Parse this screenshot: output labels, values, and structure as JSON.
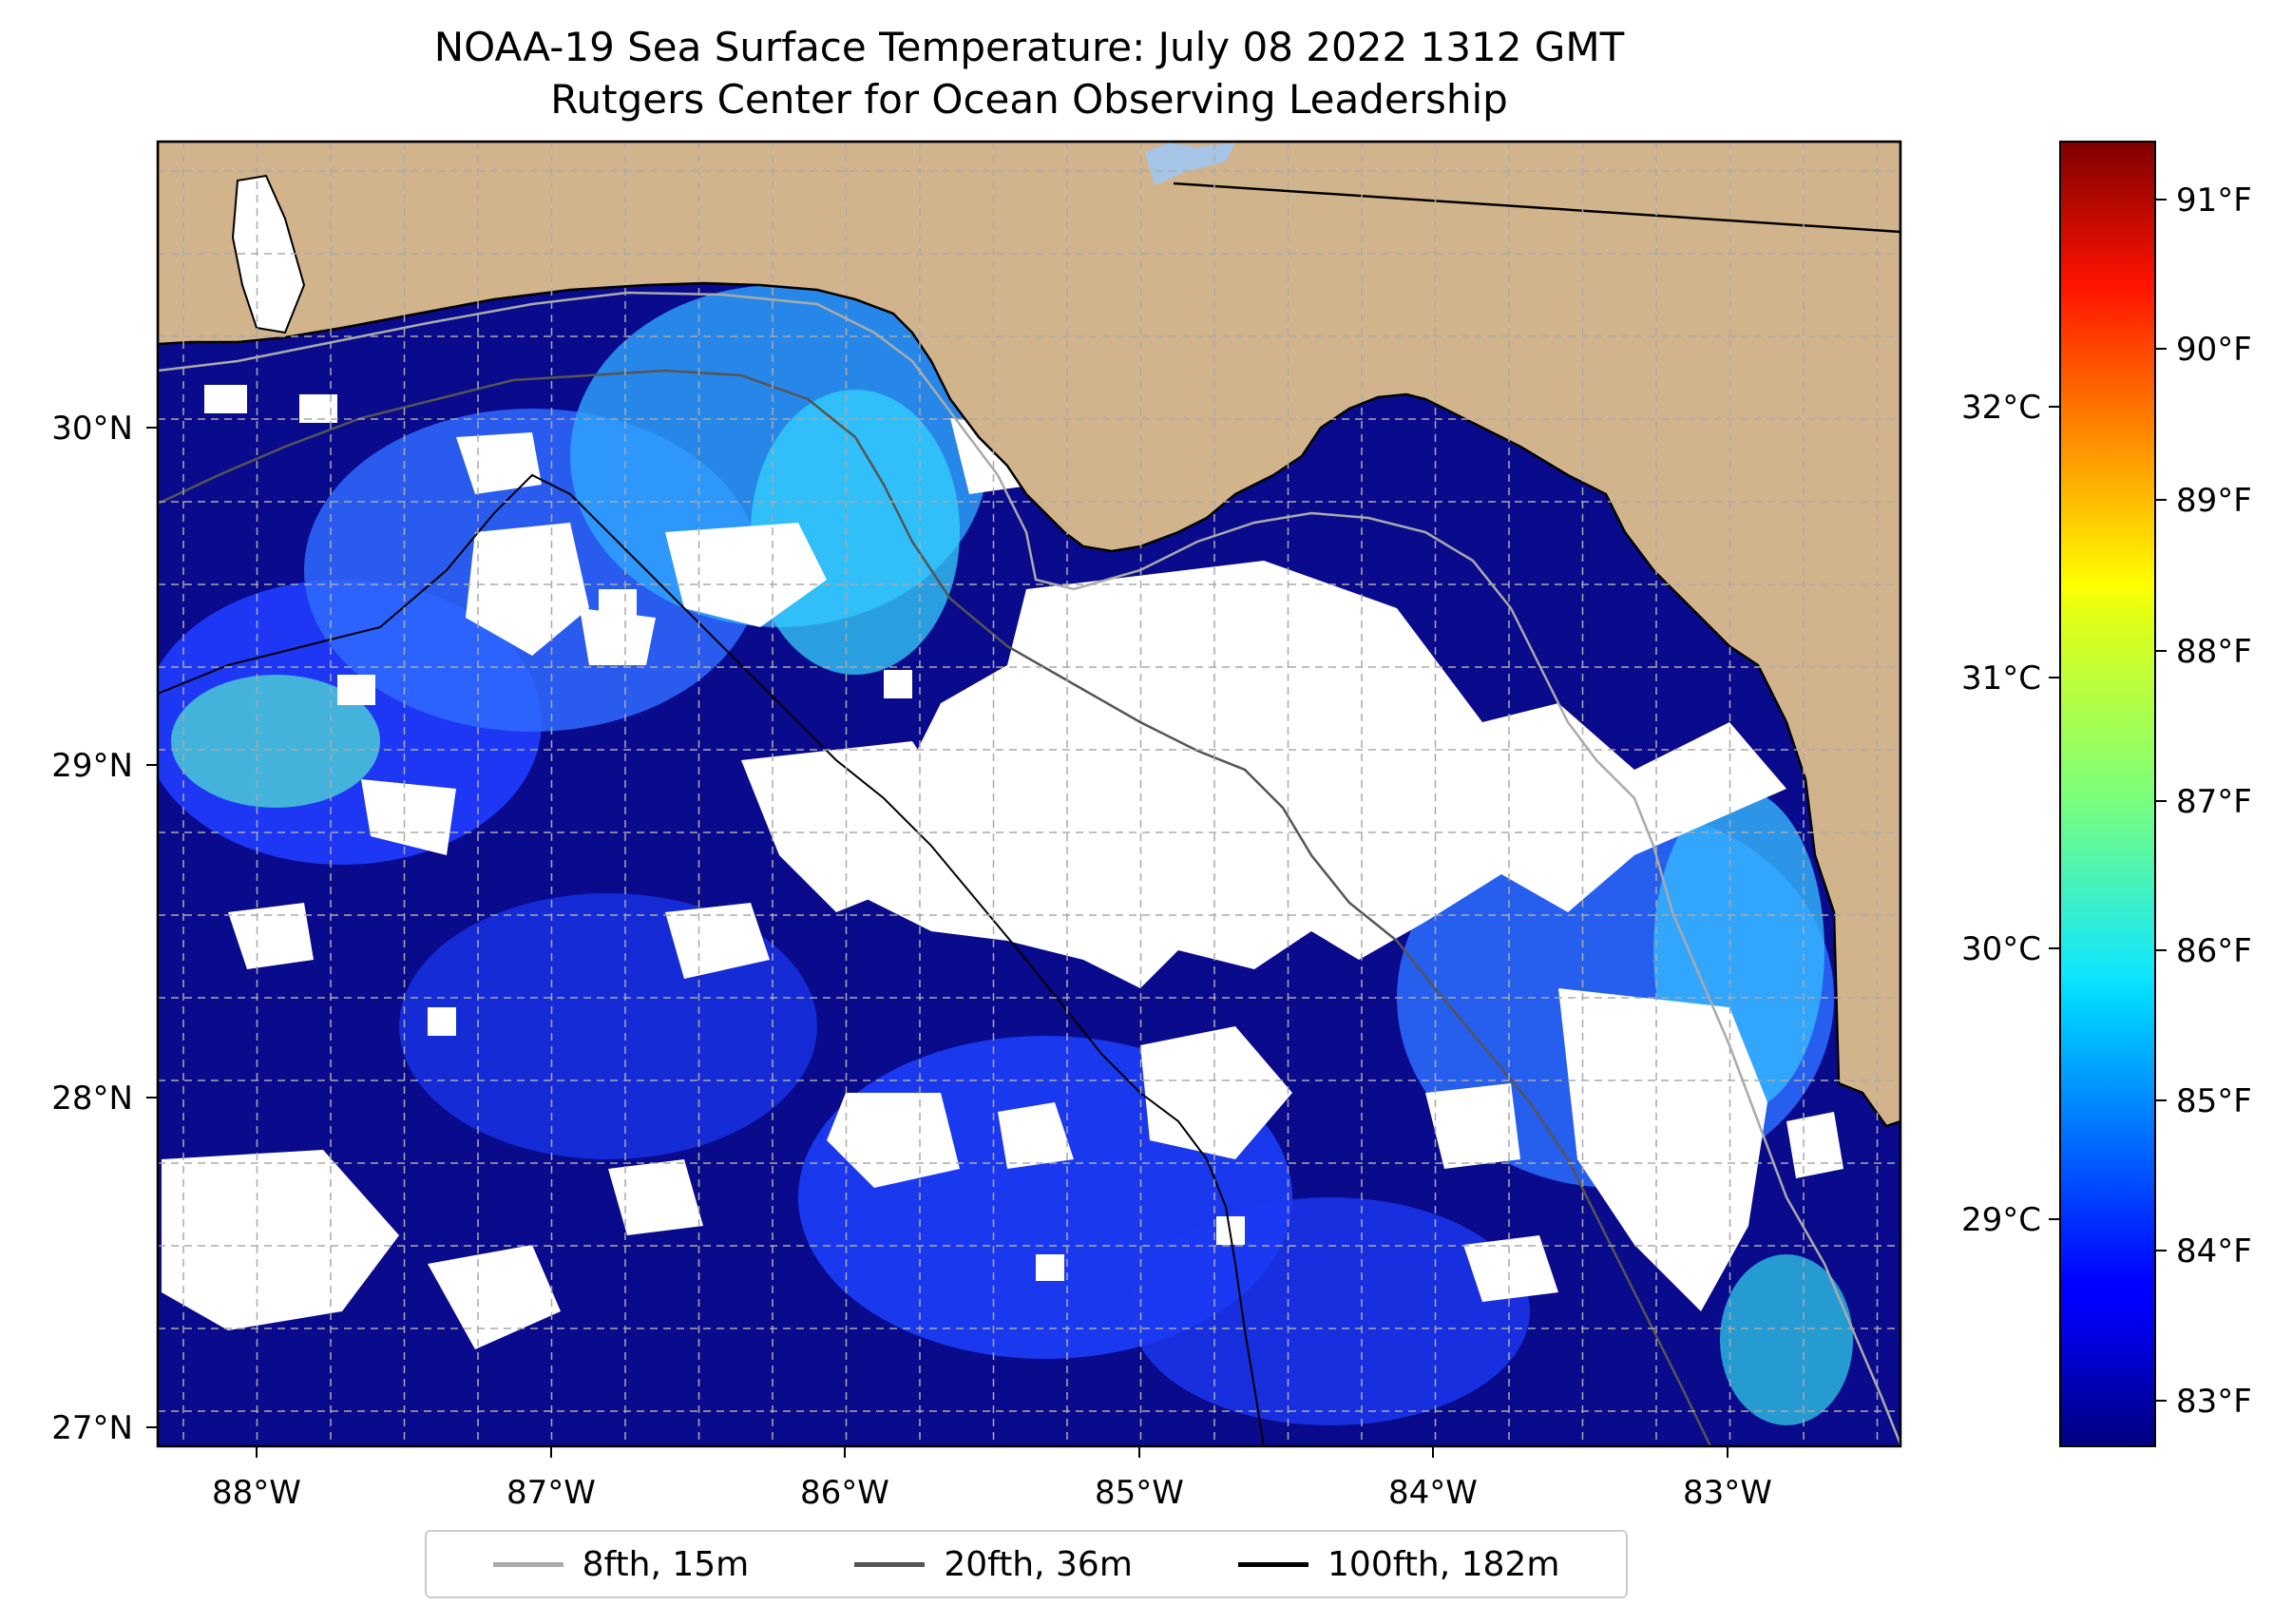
{
  "title": {
    "line1": "NOAA-19 Sea Surface Temperature: July 08 2022 1312 GMT",
    "line2": "Rutgers Center for Ocean Observing Leadership"
  },
  "map": {
    "lat_labels": [
      "30°N",
      "29°N",
      "28°N",
      "27°N"
    ],
    "lon_labels": [
      "88°W",
      "87°W",
      "86°W",
      "85°W",
      "84°W",
      "83°W"
    ],
    "land_color": "#d2b48c",
    "nodata_color": "#ffffff",
    "gridlines": true
  },
  "colorbar": {
    "colormap": "jet",
    "celsius_labels": [
      "32°C",
      "31°C",
      "30°C",
      "29°C"
    ],
    "fahrenheit_labels": [
      "91°F",
      "90°F",
      "89°F",
      "88°F",
      "87°F",
      "86°F",
      "85°F",
      "84°F",
      "83°F"
    ]
  },
  "legend": {
    "placement": "bottom-center",
    "entries": [
      {
        "label": "8fth, 15m",
        "color": "#aaaaaa"
      },
      {
        "label": "20fth, 36m",
        "color": "#555555"
      },
      {
        "label": "100fth, 182m",
        "color": "#000000"
      }
    ]
  }
}
